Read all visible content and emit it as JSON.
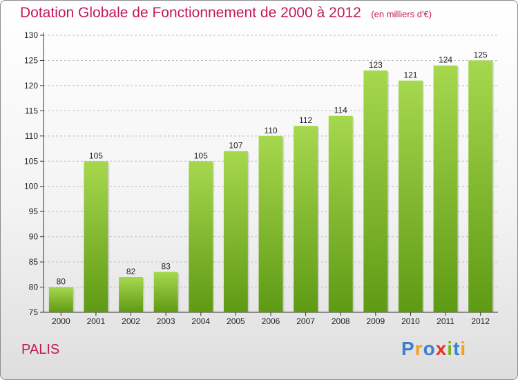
{
  "chart_data": {
    "type": "bar",
    "title": "Dotation Globale de Fonctionnement de 2000 à 2012",
    "unit_note": "(en milliers d'€)",
    "categories": [
      "2000",
      "2001",
      "2002",
      "2003",
      "2004",
      "2005",
      "2006",
      "2007",
      "2008",
      "2009",
      "2010",
      "2011",
      "2012"
    ],
    "values": [
      80,
      105,
      82,
      83,
      105,
      107,
      110,
      112,
      114,
      123,
      121,
      124,
      125
    ],
    "ylim": [
      75,
      130
    ],
    "yticks": [
      75,
      80,
      85,
      90,
      95,
      100,
      105,
      110,
      115,
      120,
      125,
      130
    ],
    "grid": "horizontal dashed",
    "colors": {
      "bar_top": "#a6d84e",
      "bar_bottom": "#5f9a14",
      "title": "#c2185b"
    }
  },
  "footer": {
    "commune": "PALIS",
    "brand_letters": [
      "P",
      "r",
      "o",
      "x",
      "i",
      "t",
      "i"
    ],
    "brand_colors": [
      "#3b7fd0",
      "#f0a020",
      "#3b7fd0",
      "#e5332a",
      "#7ab51d",
      "#3b7fd0",
      "#f0a020"
    ]
  }
}
